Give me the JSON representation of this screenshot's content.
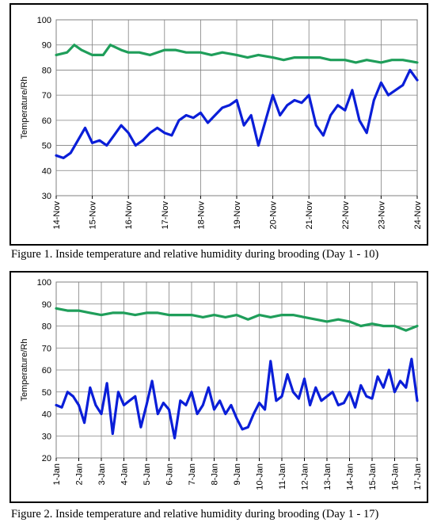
{
  "figures": [
    {
      "caption": "Figure 1.  Inside temperature and relative humidity during brooding (Day 1 - 10)",
      "chart_data": {
        "type": "line",
        "ylabel": "Temperature/Rh",
        "xlabel": "",
        "ylim": [
          30,
          100
        ],
        "yticks": [
          30,
          40,
          50,
          60,
          70,
          80,
          90,
          100
        ],
        "xticks": [
          "14-Nov",
          "15-Nov",
          "16-Nov",
          "17-Nov",
          "18-Nov",
          "19-Nov",
          "20-Nov",
          "21-Nov",
          "22-Nov",
          "23-Nov",
          "24-Nov"
        ],
        "grid": true,
        "series": [
          {
            "color": "#1f9e5a",
            "x": [
              0,
              0.3,
              0.5,
              0.7,
              1.0,
              1.3,
              1.5,
              1.8,
              2.0,
              2.3,
              2.6,
              3.0,
              3.3,
              3.6,
              4.0,
              4.3,
              4.6,
              5.0,
              5.3,
              5.6,
              6.0,
              6.3,
              6.6,
              7.0,
              7.3,
              7.6,
              8.0,
              8.3,
              8.6,
              9.0,
              9.3,
              9.6,
              10.0
            ],
            "values": [
              86,
              87,
              90,
              88,
              86,
              86,
              90,
              88,
              87,
              87,
              86,
              88,
              88,
              87,
              87,
              86,
              87,
              86,
              85,
              86,
              85,
              84,
              85,
              85,
              85,
              84,
              84,
              83,
              84,
              83,
              84,
              84,
              83
            ]
          },
          {
            "color": "#0a1ed8",
            "x": [
              0,
              0.2,
              0.4,
              0.6,
              0.8,
              1.0,
              1.2,
              1.4,
              1.6,
              1.8,
              2.0,
              2.2,
              2.4,
              2.6,
              2.8,
              3.0,
              3.2,
              3.4,
              3.6,
              3.8,
              4.0,
              4.2,
              4.4,
              4.6,
              4.8,
              5.0,
              5.2,
              5.4,
              5.6,
              5.8,
              6.0,
              6.2,
              6.4,
              6.6,
              6.8,
              7.0,
              7.2,
              7.4,
              7.6,
              7.8,
              8.0,
              8.2,
              8.4,
              8.6,
              8.8,
              9.0,
              9.2,
              9.4,
              9.6,
              9.8,
              10.0
            ],
            "values": [
              46,
              45,
              47,
              52,
              57,
              51,
              52,
              50,
              54,
              58,
              55,
              50,
              52,
              55,
              57,
              55,
              54,
              60,
              62,
              61,
              63,
              59,
              62,
              65,
              66,
              68,
              58,
              62,
              50,
              60,
              70,
              62,
              66,
              68,
              67,
              70,
              58,
              54,
              62,
              66,
              64,
              72,
              60,
              55,
              68,
              75,
              70,
              72,
              74,
              80,
              76
            ]
          }
        ]
      }
    },
    {
      "caption": "Figure 2.  Inside temperature and relative humidity during brooding (Day 1 - 17)",
      "chart_data": {
        "type": "line",
        "ylabel": "Temperature/Rh",
        "xlabel": "",
        "ylim": [
          20,
          100
        ],
        "yticks": [
          20,
          30,
          40,
          50,
          60,
          70,
          80,
          90,
          100
        ],
        "xticks": [
          "1-Jan",
          "2-Jan",
          "3-Jan",
          "4-Jan",
          "5-Jan",
          "6-Jan",
          "7-Jan",
          "8-Jan",
          "9-Jan",
          "10-Jan",
          "11-Jan",
          "12-Jan",
          "13-Jan",
          "14-Jan",
          "15-Jan",
          "16-Jan",
          "17-Jan"
        ],
        "grid": true,
        "series": [
          {
            "color": "#1f9e5a",
            "x": [
              0,
              0.5,
              1.0,
              1.5,
              2.0,
              2.5,
              3.0,
              3.5,
              4.0,
              4.5,
              5.0,
              5.5,
              6.0,
              6.5,
              7.0,
              7.5,
              8.0,
              8.5,
              9.0,
              9.5,
              10.0,
              10.5,
              11.0,
              11.5,
              12.0,
              12.5,
              13.0,
              13.5,
              14.0,
              14.5,
              15.0,
              15.5,
              16.0
            ],
            "values": [
              88,
              87,
              87,
              86,
              85,
              86,
              86,
              85,
              86,
              86,
              85,
              85,
              85,
              84,
              85,
              84,
              85,
              83,
              85,
              84,
              85,
              85,
              84,
              83,
              82,
              83,
              82,
              80,
              81,
              80,
              80,
              78,
              80
            ]
          },
          {
            "color": "#0a1ed8",
            "x": [
              0,
              0.25,
              0.5,
              0.75,
              1.0,
              1.25,
              1.5,
              1.75,
              2.0,
              2.25,
              2.5,
              2.75,
              3.0,
              3.25,
              3.5,
              3.75,
              4.0,
              4.25,
              4.5,
              4.75,
              5.0,
              5.25,
              5.5,
              5.75,
              6.0,
              6.25,
              6.5,
              6.75,
              7.0,
              7.25,
              7.5,
              7.75,
              8.0,
              8.25,
              8.5,
              8.75,
              9.0,
              9.25,
              9.5,
              9.75,
              10.0,
              10.25,
              10.5,
              10.75,
              11.0,
              11.25,
              11.5,
              11.75,
              12.0,
              12.25,
              12.5,
              12.75,
              13.0,
              13.25,
              13.5,
              13.75,
              14.0,
              14.25,
              14.5,
              14.75,
              15.0,
              15.25,
              15.5,
              15.75,
              16.0
            ],
            "values": [
              44,
              43,
              50,
              48,
              44,
              36,
              52,
              44,
              40,
              54,
              31,
              50,
              44,
              46,
              48,
              34,
              44,
              55,
              40,
              45,
              42,
              29,
              46,
              44,
              50,
              40,
              44,
              52,
              42,
              46,
              40,
              44,
              38,
              33,
              34,
              40,
              45,
              42,
              64,
              46,
              48,
              58,
              50,
              47,
              56,
              44,
              52,
              46,
              48,
              50,
              44,
              45,
              50,
              43,
              53,
              48,
              47,
              57,
              52,
              60,
              50,
              55,
              52,
              65,
              46
            ]
          }
        ]
      }
    }
  ]
}
